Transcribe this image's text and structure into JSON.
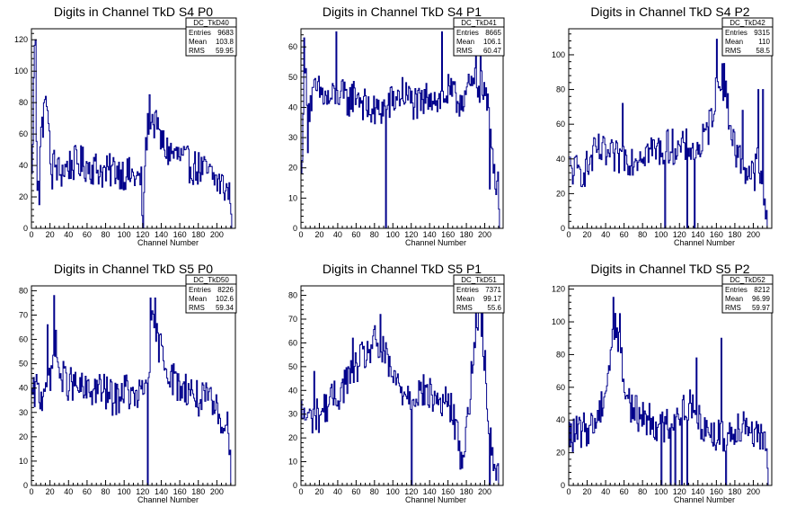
{
  "chart_data": [
    {
      "type": "bar",
      "title": "Digits in Channel TkD S4 P0",
      "xlabel": "Channel Number",
      "ylabel": "",
      "xlim": [
        0,
        220
      ],
      "ylim": [
        0,
        127
      ],
      "xticks": [
        0,
        20,
        40,
        60,
        80,
        100,
        120,
        140,
        160,
        180,
        200
      ],
      "yticks": [
        0,
        20,
        40,
        60,
        80,
        100,
        120
      ],
      "stats": {
        "name": "DC_TkD40",
        "entries": "9683",
        "mean": "103.8",
        "rms": "59.95"
      },
      "series": [
        {
          "anchors": [
            [
              0,
              30
            ],
            [
              3,
              120
            ],
            [
              6,
              30
            ],
            [
              10,
              60
            ],
            [
              15,
              80
            ],
            [
              20,
              45
            ],
            [
              25,
              40
            ],
            [
              30,
              35
            ],
            [
              40,
              40
            ],
            [
              50,
              42
            ],
            [
              60,
              40
            ],
            [
              70,
              38
            ],
            [
              80,
              35
            ],
            [
              90,
              38
            ],
            [
              100,
              35
            ],
            [
              110,
              33
            ],
            [
              118,
              30
            ],
            [
              120,
              0
            ],
            [
              122,
              45
            ],
            [
              127,
              75
            ],
            [
              135,
              60
            ],
            [
              140,
              55
            ],
            [
              145,
              50
            ],
            [
              150,
              48
            ],
            [
              160,
              45
            ],
            [
              170,
              40
            ],
            [
              180,
              38
            ],
            [
              190,
              35
            ],
            [
              200,
              30
            ],
            [
              210,
              25
            ],
            [
              216,
              18
            ]
          ],
          "spikes": [
            [
              4,
              120
            ],
            [
              8,
              15
            ],
            [
              13,
              80
            ],
            [
              17,
              75
            ],
            [
              22,
              25
            ],
            [
              120,
              0
            ],
            [
              127,
              85
            ],
            [
              134,
              75
            ]
          ]
        }
      ]
    },
    {
      "type": "bar",
      "title": "Digits in Channel TkD S4 P1",
      "xlabel": "Channel Number",
      "ylabel": "",
      "xlim": [
        0,
        220
      ],
      "ylim": [
        0,
        66
      ],
      "xticks": [
        0,
        20,
        40,
        60,
        80,
        100,
        120,
        140,
        160,
        180,
        200
      ],
      "yticks": [
        0,
        10,
        20,
        30,
        40,
        50,
        60
      ],
      "stats": {
        "name": "DC_TkD41",
        "entries": "8665",
        "mean": "106.1",
        "rms": "60.47"
      },
      "series": [
        {
          "anchors": [
            [
              0,
              15
            ],
            [
              3,
              55
            ],
            [
              8,
              40
            ],
            [
              15,
              45
            ],
            [
              20,
              45
            ],
            [
              30,
              42
            ],
            [
              40,
              45
            ],
            [
              50,
              42
            ],
            [
              60,
              45
            ],
            [
              70,
              40
            ],
            [
              80,
              38
            ],
            [
              90,
              40
            ],
            [
              100,
              42
            ],
            [
              110,
              45
            ],
            [
              120,
              42
            ],
            [
              130,
              40
            ],
            [
              140,
              45
            ],
            [
              150,
              42
            ],
            [
              160,
              45
            ],
            [
              170,
              42
            ],
            [
              180,
              45
            ],
            [
              190,
              48
            ],
            [
              200,
              45
            ],
            [
              205,
              35
            ],
            [
              210,
              20
            ],
            [
              216,
              10
            ]
          ],
          "spikes": [
            [
              3,
              63
            ],
            [
              7,
              25
            ],
            [
              38,
              65
            ],
            [
              92,
              0
            ],
            [
              153,
              65
            ],
            [
              190,
              65
            ],
            [
              195,
              65
            ],
            [
              205,
              13
            ],
            [
              216,
              0
            ]
          ]
        }
      ]
    },
    {
      "type": "bar",
      "title": "Digits in Channel TkD S4 P2",
      "xlabel": "Channel Number",
      "ylabel": "",
      "xlim": [
        0,
        220
      ],
      "ylim": [
        0,
        115
      ],
      "xticks": [
        0,
        20,
        40,
        60,
        80,
        100,
        120,
        140,
        160,
        180,
        200
      ],
      "yticks": [
        0,
        20,
        40,
        60,
        80,
        100
      ],
      "stats": {
        "name": "DC_TkD42",
        "entries": "9315",
        "mean": "110",
        "rms": "58.5"
      },
      "series": [
        {
          "anchors": [
            [
              0,
              35
            ],
            [
              10,
              32
            ],
            [
              20,
              35
            ],
            [
              30,
              45
            ],
            [
              40,
              42
            ],
            [
              50,
              40
            ],
            [
              60,
              42
            ],
            [
              70,
              40
            ],
            [
              80,
              45
            ],
            [
              90,
              45
            ],
            [
              100,
              45
            ],
            [
              110,
              48
            ],
            [
              120,
              45
            ],
            [
              130,
              48
            ],
            [
              140,
              45
            ],
            [
              150,
              55
            ],
            [
              160,
              80
            ],
            [
              165,
              90
            ],
            [
              170,
              75
            ],
            [
              180,
              45
            ],
            [
              190,
              35
            ],
            [
              200,
              30
            ],
            [
              205,
              40
            ],
            [
              210,
              15
            ],
            [
              216,
              5
            ]
          ],
          "spikes": [
            [
              58,
              72
            ],
            [
              104,
              0
            ],
            [
              128,
              0
            ],
            [
              136,
              0
            ],
            [
              160,
              109
            ],
            [
              168,
              95
            ],
            [
              188,
              68
            ],
            [
              205,
              80
            ],
            [
              210,
              80
            ]
          ]
        }
      ]
    },
    {
      "type": "bar",
      "title": "Digits in Channel TkD S5 P0",
      "xlabel": "Channel Number",
      "ylabel": "",
      "xlim": [
        0,
        220
      ],
      "ylim": [
        0,
        82
      ],
      "xticks": [
        0,
        20,
        40,
        60,
        80,
        100,
        120,
        140,
        160,
        180,
        200
      ],
      "yticks": [
        0,
        10,
        20,
        30,
        40,
        50,
        60,
        70,
        80
      ],
      "stats": {
        "name": "DC_TkD50",
        "entries": "8226",
        "mean": "102.6",
        "rms": "59.34"
      },
      "series": [
        {
          "anchors": [
            [
              0,
              35
            ],
            [
              5,
              40
            ],
            [
              10,
              35
            ],
            [
              15,
              45
            ],
            [
              20,
              40
            ],
            [
              25,
              60
            ],
            [
              30,
              45
            ],
            [
              40,
              42
            ],
            [
              50,
              40
            ],
            [
              60,
              38
            ],
            [
              70,
              40
            ],
            [
              80,
              38
            ],
            [
              90,
              35
            ],
            [
              100,
              40
            ],
            [
              110,
              35
            ],
            [
              120,
              38
            ],
            [
              125,
              45
            ],
            [
              130,
              65
            ],
            [
              135,
              60
            ],
            [
              140,
              55
            ],
            [
              145,
              50
            ],
            [
              150,
              45
            ],
            [
              160,
              40
            ],
            [
              170,
              40
            ],
            [
              180,
              35
            ],
            [
              190,
              35
            ],
            [
              200,
              30
            ],
            [
              210,
              25
            ],
            [
              216,
              15
            ]
          ],
          "spikes": [
            [
              17,
              66
            ],
            [
              24,
              78
            ],
            [
              125,
              0
            ],
            [
              128,
              77
            ],
            [
              133,
              77
            ],
            [
              215,
              0
            ]
          ]
        }
      ]
    },
    {
      "type": "bar",
      "title": "Digits in Channel TkD S5 P1",
      "xlabel": "Channel Number",
      "ylabel": "",
      "xlim": [
        0,
        220
      ],
      "ylim": [
        0,
        84
      ],
      "xticks": [
        0,
        20,
        40,
        60,
        80,
        100,
        120,
        140,
        160,
        180,
        200
      ],
      "yticks": [
        0,
        10,
        20,
        30,
        40,
        50,
        60,
        70,
        80
      ],
      "stats": {
        "name": "DC_TkD51",
        "entries": "7371",
        "mean": "99.17",
        "rms": "55.6"
      },
      "series": [
        {
          "anchors": [
            [
              0,
              30
            ],
            [
              10,
              28
            ],
            [
              20,
              30
            ],
            [
              30,
              35
            ],
            [
              40,
              38
            ],
            [
              50,
              45
            ],
            [
              60,
              50
            ],
            [
              70,
              55
            ],
            [
              80,
              60
            ],
            [
              90,
              55
            ],
            [
              100,
              45
            ],
            [
              110,
              40
            ],
            [
              120,
              38
            ],
            [
              130,
              40
            ],
            [
              140,
              38
            ],
            [
              150,
              35
            ],
            [
              160,
              35
            ],
            [
              165,
              30
            ],
            [
              170,
              20
            ],
            [
              175,
              10
            ],
            [
              180,
              25
            ],
            [
              185,
              45
            ],
            [
              190,
              65
            ],
            [
              195,
              75
            ],
            [
              200,
              50
            ],
            [
              205,
              20
            ],
            [
              210,
              10
            ],
            [
              216,
              0
            ]
          ],
          "spikes": [
            [
              14,
              48
            ],
            [
              56,
              62
            ],
            [
              86,
              72
            ],
            [
              120,
              0
            ],
            [
              190,
              75
            ],
            [
              197,
              80
            ],
            [
              205,
              0
            ]
          ]
        }
      ]
    },
    {
      "type": "bar",
      "title": "Digits in Channel TkD S5 P2",
      "xlabel": "Channel Number",
      "ylabel": "",
      "xlim": [
        0,
        220
      ],
      "ylim": [
        0,
        122
      ],
      "xticks": [
        0,
        20,
        40,
        60,
        80,
        100,
        120,
        140,
        160,
        180,
        200
      ],
      "yticks": [
        0,
        20,
        40,
        60,
        80,
        100,
        120
      ],
      "stats": {
        "name": "DC_TkD52",
        "entries": "8212",
        "mean": "96.99",
        "rms": "59.97"
      },
      "series": [
        {
          "anchors": [
            [
              0,
              30
            ],
            [
              10,
              32
            ],
            [
              20,
              35
            ],
            [
              30,
              40
            ],
            [
              40,
              60
            ],
            [
              50,
              100
            ],
            [
              55,
              85
            ],
            [
              60,
              60
            ],
            [
              70,
              45
            ],
            [
              80,
              42
            ],
            [
              90,
              40
            ],
            [
              100,
              35
            ],
            [
              110,
              40
            ],
            [
              120,
              45
            ],
            [
              130,
              50
            ],
            [
              140,
              40
            ],
            [
              150,
              35
            ],
            [
              160,
              30
            ],
            [
              170,
              30
            ],
            [
              180,
              35
            ],
            [
              190,
              40
            ],
            [
              200,
              32
            ],
            [
              210,
              25
            ],
            [
              216,
              20
            ]
          ],
          "spikes": [
            [
              48,
              115
            ],
            [
              55,
              105
            ],
            [
              100,
              0
            ],
            [
              110,
              0
            ],
            [
              115,
              0
            ],
            [
              122,
              0
            ],
            [
              128,
              0
            ],
            [
              138,
              78
            ],
            [
              165,
              90
            ],
            [
              170,
              0
            ]
          ]
        }
      ]
    }
  ]
}
